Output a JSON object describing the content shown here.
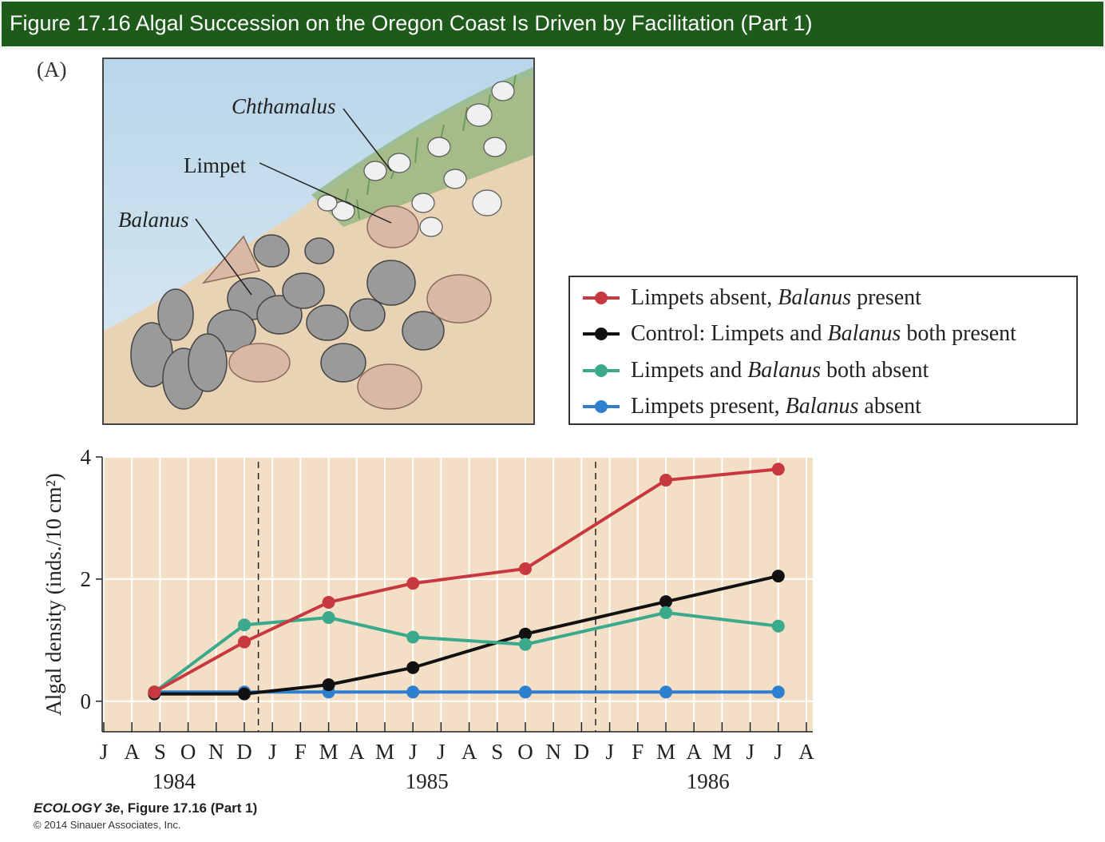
{
  "title": "Figure 17.16 Algal Succession on the Oregon Coast Is Driven by Facilitation (Part 1)",
  "panel_label": "(A)",
  "illustration": {
    "labels": {
      "chthamalus": "Chthamalus",
      "limpet": "Limpet",
      "balanus": "Balanus"
    }
  },
  "legend": {
    "items": [
      {
        "pre": "Limpets absent, ",
        "ital": "Balanus",
        "post": " present",
        "color": "#c8393f"
      },
      {
        "pre": "Control: Limpets and ",
        "ital": "Balanus",
        "post": " both present",
        "color": "#111111"
      },
      {
        "pre": "Limpets and ",
        "ital": "Balanus",
        "post": " both absent",
        "color": "#3aa98c"
      },
      {
        "pre": "Limpets present, ",
        "ital": "Balanus",
        "post": " absent",
        "color": "#2f7fcf"
      }
    ]
  },
  "chart_data": {
    "type": "line",
    "title": "",
    "xlabel": "",
    "ylabel": "Algal density (inds./10 cm²)",
    "ylim": [
      -0.5,
      4
    ],
    "yticks": [
      0,
      2,
      4
    ],
    "months": [
      "J",
      "A",
      "S",
      "O",
      "N",
      "D",
      "J",
      "F",
      "M",
      "A",
      "M",
      "J",
      "J",
      "A",
      "S",
      "O",
      "N",
      "D",
      "J",
      "F",
      "M",
      "A",
      "M",
      "J",
      "J",
      "A"
    ],
    "years": [
      {
        "label": "1984",
        "center_month": 2.5
      },
      {
        "label": "1985",
        "center_month": 11.5
      },
      {
        "label": "1986",
        "center_month": 21.5
      }
    ],
    "year_dividers": [
      5.5,
      17.5
    ],
    "series": [
      {
        "name": "Limpets present, Balanus absent",
        "color": "#2f7fcf",
        "x": [
          1.8,
          5,
          8,
          11,
          15,
          20,
          24
        ],
        "y": [
          0.15,
          0.15,
          0.15,
          0.15,
          0.15,
          0.15,
          0.15
        ]
      },
      {
        "name": "Control: Limpets and Balanus both present",
        "color": "#111111",
        "x": [
          1.8,
          5,
          8,
          11,
          15,
          20,
          24
        ],
        "y": [
          0.12,
          0.12,
          0.27,
          0.55,
          1.1,
          1.63,
          2.05
        ]
      },
      {
        "name": "Limpets and Balanus both absent",
        "color": "#3aa98c",
        "x": [
          1.8,
          5,
          8,
          11,
          15,
          20,
          24
        ],
        "y": [
          0.15,
          1.25,
          1.37,
          1.05,
          0.93,
          1.45,
          1.23
        ]
      },
      {
        "name": "Limpets absent, Balanus present",
        "color": "#c8393f",
        "x": [
          1.8,
          5,
          8,
          11,
          15,
          20,
          24
        ],
        "y": [
          0.15,
          0.97,
          1.62,
          1.93,
          2.17,
          3.62,
          3.8
        ]
      }
    ]
  },
  "footer": {
    "book": "ECOLOGY 3e",
    "figure": ", Figure 17.16 (Part 1)",
    "copyright": "© 2014 Sinauer Associates, Inc."
  }
}
